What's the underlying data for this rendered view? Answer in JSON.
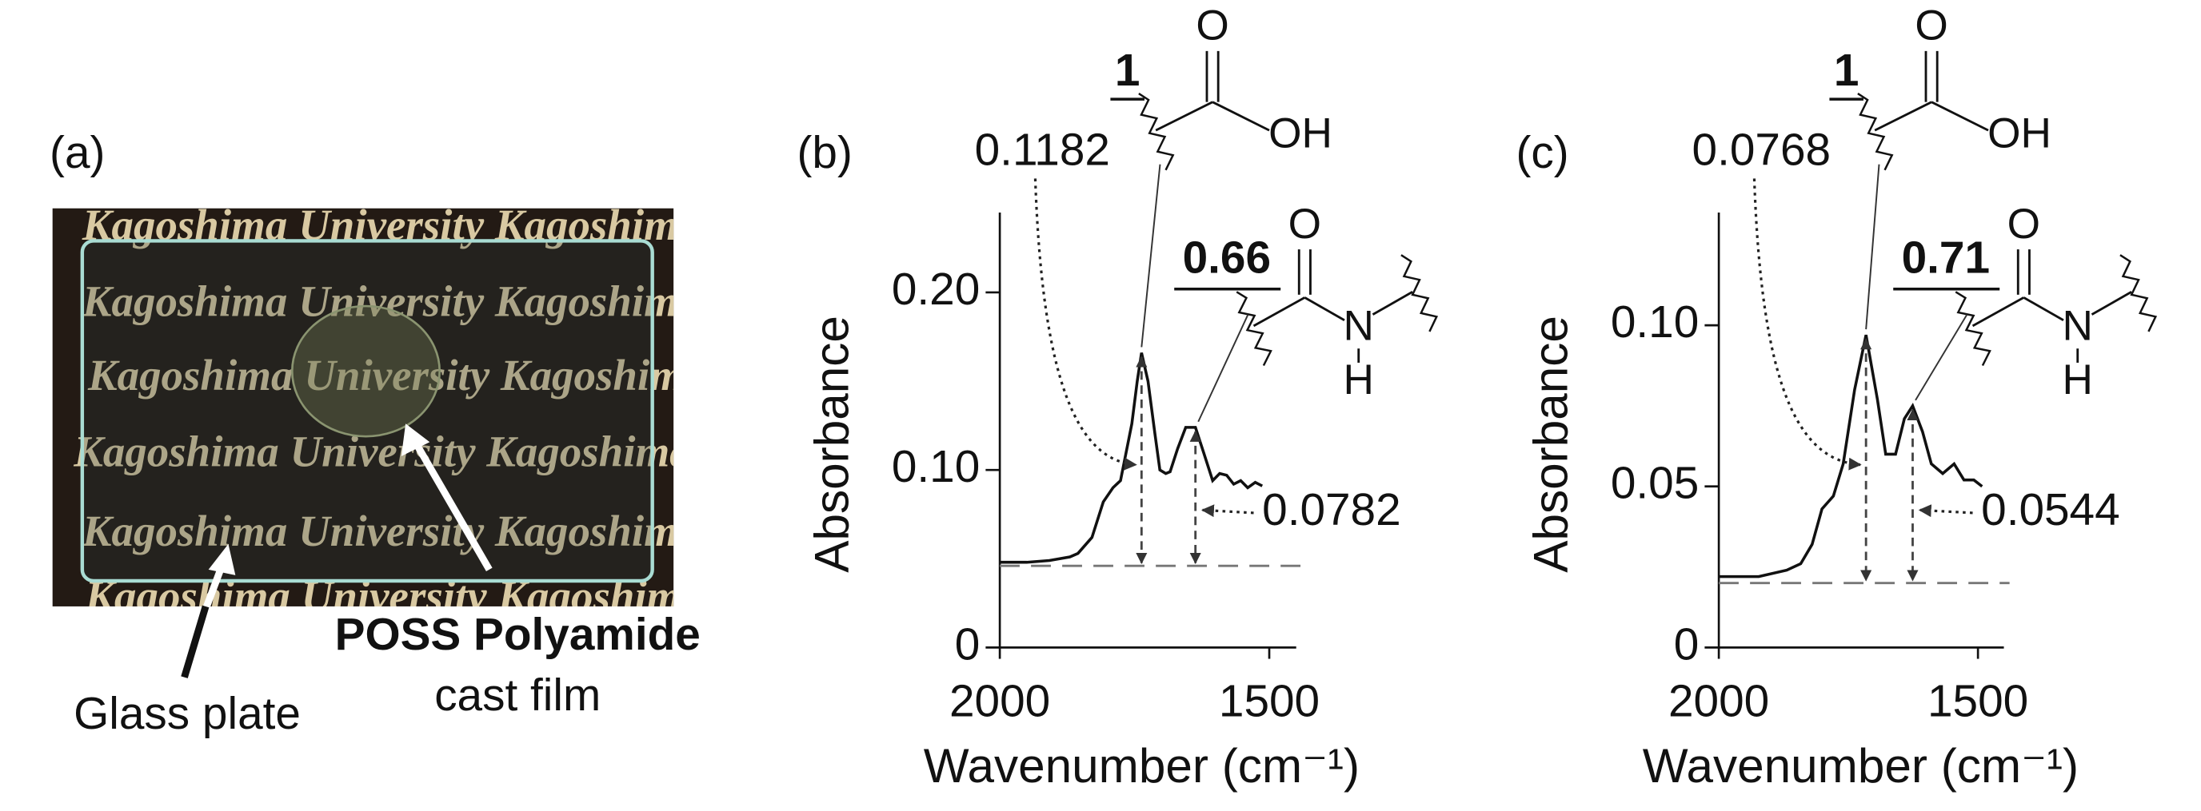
{
  "photo": {
    "label": "(a)",
    "background_text": "Kagoshima University Kagoshima",
    "arrow_label": "Glass plate",
    "film_label": "POSS Polyamide",
    "film_sublabel": "cast film"
  },
  "chart_data": [
    {
      "type": "line",
      "panel_label": "(b)",
      "y_label": "Absorbance",
      "x_label": "Wavenumber (cm⁻¹)",
      "x": [
        2000,
        1950,
        1908,
        1870,
        1855,
        1829,
        1808,
        1790,
        1776,
        1755,
        1745,
        1737,
        1725,
        1712,
        1703,
        1692,
        1684,
        1670,
        1655,
        1637,
        1622,
        1605,
        1592,
        1579,
        1566,
        1553,
        1540,
        1526,
        1513
      ],
      "series": [
        {
          "color": "#111111",
          "values": [
            0.048,
            0.048,
            0.049,
            0.051,
            0.053,
            0.062,
            0.082,
            0.09,
            0.094,
            0.126,
            0.15,
            0.166,
            0.15,
            0.12,
            0.1,
            0.098,
            0.099,
            0.112,
            0.124,
            0.124,
            0.11,
            0.094,
            0.098,
            0.097,
            0.092,
            0.094,
            0.09,
            0.093,
            0.091
          ]
        }
      ],
      "baseline": 0.046,
      "xlim": [
        2000,
        1450
      ],
      "xticks": [
        2000,
        1500
      ],
      "ylim": [
        0,
        0.245
      ],
      "yticks": [
        0,
        {
          "value": 0.1,
          "label": "0.10"
        },
        {
          "value": 0.2,
          "label": "0.20"
        }
      ],
      "annotations": {
        "peak1": "0.1182",
        "peak2": "0.0782",
        "ratio": "0.66",
        "acid_label": "1",
        "acid_o": "O",
        "acid_oh": "OH",
        "amide_o": "O",
        "amide_n": "N",
        "amide_h": "H"
      }
    },
    {
      "type": "line",
      "panel_label": "(c)",
      "y_label": "Absorbance",
      "x_label": "Wavenumber (cm⁻¹)",
      "x": [
        2000,
        1923,
        1869,
        1842,
        1820,
        1801,
        1779,
        1760,
        1738,
        1716,
        1694,
        1678,
        1659,
        1642,
        1626,
        1607,
        1590,
        1568,
        1546,
        1527,
        1508,
        1492
      ],
      "series": [
        {
          "color": "#111111",
          "values": [
            0.022,
            0.022,
            0.024,
            0.026,
            0.032,
            0.043,
            0.047,
            0.057,
            0.08,
            0.097,
            0.077,
            0.06,
            0.06,
            0.071,
            0.075,
            0.067,
            0.057,
            0.054,
            0.057,
            0.052,
            0.052,
            0.05
          ]
        }
      ],
      "baseline": 0.02,
      "xlim": [
        2000,
        1450
      ],
      "xticks": [
        2000,
        1500
      ],
      "ylim": [
        0,
        0.135
      ],
      "yticks": [
        0,
        0.05,
        {
          "value": 0.1,
          "label": "0.10"
        }
      ],
      "annotations": {
        "peak1": "0.0768",
        "peak2": "0.0544",
        "ratio": "0.71",
        "acid_label": "1",
        "acid_o": "O",
        "acid_oh": "OH",
        "amide_o": "O",
        "amide_n": "N",
        "amide_h": "H"
      }
    }
  ]
}
